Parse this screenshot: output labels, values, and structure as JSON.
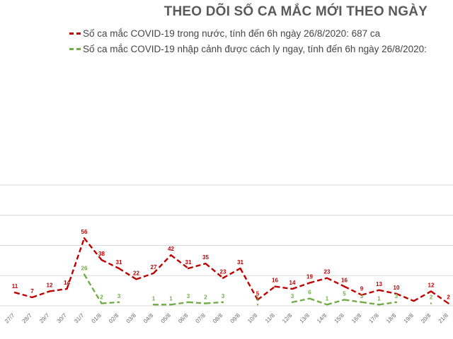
{
  "chart_data": {
    "type": "line",
    "title": "THEO DÕI SỐ CA MẮC MỚI THEO NGÀY",
    "categories": [
      "27/7",
      "28/7",
      "29/7",
      "30/7",
      "31/7",
      "01/8",
      "02/8",
      "03/8",
      "04/8",
      "05/8",
      "06/8",
      "07/8",
      "08/8",
      "09/8",
      "10/8",
      "11/8",
      "12/8",
      "13/8",
      "14/8",
      "15/8",
      "16/8",
      "17/8",
      "18/8",
      "19/8",
      "20/8",
      "21/8"
    ],
    "series": [
      {
        "name": "Số ca mắc COVID-19 trong nước, tính đến 6h ngày 26/8/2020: 687 ca",
        "color": "#c00000",
        "values": [
          11,
          7,
          12,
          14,
          56,
          38,
          31,
          22,
          27,
          42,
          31,
          35,
          23,
          31,
          5,
          16,
          14,
          19,
          23,
          16,
          9,
          13,
          10,
          4,
          12,
          2
        ],
        "labels": [
          "11",
          "7",
          "12",
          "14",
          "56",
          "38",
          "31",
          "22",
          "27",
          "42",
          "31",
          "35",
          "23",
          "31",
          "5",
          "16",
          "14",
          "19",
          "23",
          "16",
          "9",
          "13",
          "10",
          "",
          "12",
          "2"
        ]
      },
      {
        "name": "Số ca mắc COVID-19 nhập cảnh được cách ly ngay, tính đến 6h ngày 26/8/2020:",
        "color": "#70ad47",
        "values": [
          null,
          null,
          null,
          null,
          26,
          2,
          3,
          null,
          1,
          1,
          3,
          2,
          3,
          null,
          1,
          null,
          3,
          6,
          1,
          5,
          3,
          1,
          3,
          null,
          2,
          null
        ],
        "labels": [
          "",
          "",
          "",
          "",
          "26",
          "2",
          "3",
          "",
          "1",
          "1",
          "3",
          "2",
          "3",
          "",
          "1",
          "",
          "3",
          "6",
          "1",
          "5",
          "3",
          "1",
          "3",
          "",
          "2",
          ""
        ]
      }
    ],
    "ylim": [
      0,
      100
    ],
    "grid": true,
    "legend_position": "top"
  }
}
